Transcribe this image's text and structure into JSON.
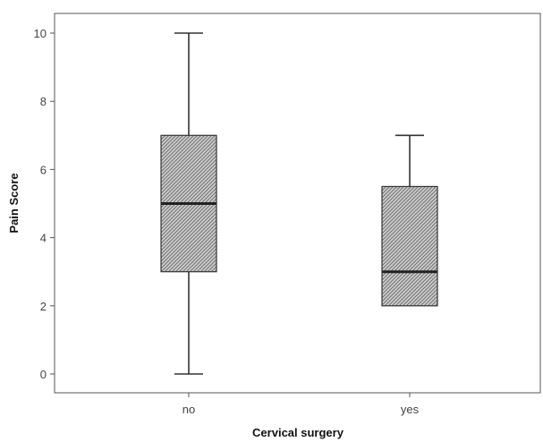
{
  "chart_data": {
    "type": "box",
    "title": "",
    "xlabel": "Cervical surgery",
    "ylabel": "Pain Score",
    "ylim": [
      0,
      10
    ],
    "y_ticks": [
      "0",
      "2",
      "4",
      "6",
      "8",
      "10"
    ],
    "categories": [
      "no",
      "yes"
    ],
    "boxes": [
      {
        "category": "no",
        "min": 0,
        "q1": 3,
        "median": 5,
        "q3": 7,
        "max": 10
      },
      {
        "category": "yes",
        "min": 2,
        "q1": 2,
        "median": 3,
        "q3": 5.5,
        "max": 7
      }
    ],
    "grid": false,
    "legend": "none"
  },
  "colors": {
    "frame": "#555555",
    "box_fill": "#cfcfcf",
    "hatch": "#6d6d6d",
    "median": "#222222",
    "whisker": "#333333"
  }
}
